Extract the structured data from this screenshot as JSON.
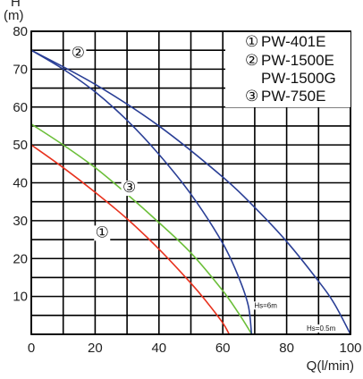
{
  "chart_data": {
    "type": "line",
    "title": "",
    "xlabel": "Q(l/min)",
    "ylabel_top": "H",
    "ylabel_unit": "(m)",
    "xlim": [
      0,
      100
    ],
    "ylim": [
      0,
      80
    ],
    "x_ticks": [
      0,
      20,
      40,
      60,
      80,
      100
    ],
    "y_ticks": [
      10,
      20,
      30,
      40,
      50,
      60,
      70,
      80
    ],
    "grid": true,
    "legend_position": "top-right",
    "legend": [
      {
        "marker": "①",
        "text": "PW-401E"
      },
      {
        "marker": "②",
        "text": "PW-1500E"
      },
      {
        "marker": "",
        "text": "PW-1500G"
      },
      {
        "marker": "③",
        "text": "PW-750E"
      }
    ],
    "series": [
      {
        "marker": "①",
        "color": "#e8321e",
        "x": [
          0,
          10,
          20,
          30,
          40,
          50,
          55,
          60,
          62
        ],
        "y": [
          50,
          44,
          37.5,
          30.5,
          22.5,
          13.5,
          8.5,
          3,
          0
        ]
      },
      {
        "marker": "③",
        "color": "#6cbf3a",
        "x": [
          0,
          10,
          20,
          30,
          40,
          50,
          60,
          65,
          68,
          69
        ],
        "y": [
          55.5,
          50,
          44,
          37,
          29.5,
          21.5,
          11.5,
          5.5,
          1.5,
          0
        ]
      },
      {
        "marker": "②",
        "color": "#2a3f96",
        "annotation": "Hs=6m",
        "x": [
          0,
          10,
          20,
          30,
          40,
          50,
          60,
          65,
          68,
          69
        ],
        "y": [
          75,
          70,
          64,
          56.5,
          47.5,
          37,
          24,
          15,
          7.5,
          0
        ]
      },
      {
        "marker": "",
        "color": "#2a3f96",
        "annotation": "Hs=0.5m",
        "x": [
          0,
          20,
          40,
          60,
          70,
          80,
          90,
          95,
          100
        ],
        "y": [
          75,
          66,
          55,
          41.5,
          33.5,
          24.5,
          14,
          8,
          0
        ]
      }
    ],
    "curve_markers": [
      {
        "text": "①",
        "x": 25,
        "y": 28,
        "series": 0
      },
      {
        "text": "③",
        "x": 33.5,
        "y": 37.5,
        "series": 1
      },
      {
        "text": "②",
        "x": 13,
        "y": 73,
        "series": 2
      }
    ]
  }
}
